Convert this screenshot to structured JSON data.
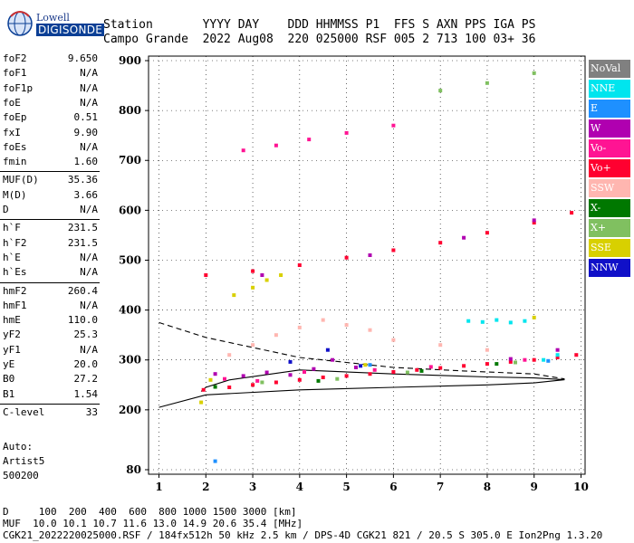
{
  "logo": {
    "line1": "Lowell",
    "line2": "DIGISONDE"
  },
  "header": {
    "labels": "Station       YYYY DAY    DDD HHMMSS P1  FFS S AXN PPS IGA PS",
    "values": "Campo Grande  2022 Aug08  220 025000 RSF 005 2 713 100 03+ 36"
  },
  "params": [
    {
      "name": "foF2",
      "value": "9.650"
    },
    {
      "name": "foF1",
      "value": "N/A"
    },
    {
      "name": "foF1p",
      "value": "N/A"
    },
    {
      "name": "foE",
      "value": "N/A"
    },
    {
      "name": "foEp",
      "value": "0.51"
    },
    {
      "name": "fxI",
      "value": "9.90"
    },
    {
      "name": "foEs",
      "value": "N/A"
    },
    {
      "name": "fmin",
      "value": "1.60"
    },
    {
      "name": "MUF(D)",
      "value": "35.36"
    },
    {
      "name": "M(D)",
      "value": "3.66"
    },
    {
      "name": "D",
      "value": "N/A"
    },
    {
      "name": "h`F",
      "value": "231.5"
    },
    {
      "name": "h`F2",
      "value": "231.5"
    },
    {
      "name": "h`E",
      "value": "N/A"
    },
    {
      "name": "h`Es",
      "value": "N/A"
    },
    {
      "name": "hmF2",
      "value": "260.4"
    },
    {
      "name": "hmF1",
      "value": "N/A"
    },
    {
      "name": "hmE",
      "value": "110.0"
    },
    {
      "name": "yF2",
      "value": "25.3"
    },
    {
      "name": "yF1",
      "value": "N/A"
    },
    {
      "name": "yE",
      "value": "20.0"
    },
    {
      "name": "B0",
      "value": "27.2"
    },
    {
      "name": "B1",
      "value": "1.54"
    },
    {
      "name": "C-level",
      "value": "33"
    }
  ],
  "extra": {
    "auto": "Auto:",
    "artist": "Artist5",
    "version": "500200"
  },
  "footer": {
    "line1": "D     100  200  400  600  800 1000 1500 3000 [km]",
    "line2": "MUF  10.0 10.1 10.7 11.6 13.0 14.9 20.6 35.4 [MHz]",
    "line3": "CGK21_2022220025000.RSF / 184fx512h 50 kHz 2.5 km / DPS-4D CGK21 821 / 20.5 S 305.0 E Ion2Png 1.3.20"
  },
  "legend": [
    {
      "label": "NoVal",
      "color": "#808080"
    },
    {
      "label": "NNE",
      "color": "#00e5ee"
    },
    {
      "label": "E",
      "color": "#1e90ff"
    },
    {
      "label": "W",
      "color": "#b000b0"
    },
    {
      "label": "Vo-",
      "color": "#ff1493"
    },
    {
      "label": "Vo+",
      "color": "#ff0030"
    },
    {
      "label": "SSW",
      "color": "#ffb6b0"
    },
    {
      "label": "X-",
      "color": "#007800"
    },
    {
      "label": "X+",
      "color": "#80c060"
    },
    {
      "label": "SSE",
      "color": "#d8d000"
    },
    {
      "label": "NNW",
      "color": "#1010c8"
    }
  ],
  "chart_data": {
    "type": "scatter",
    "title": "",
    "xlabel": "",
    "ylabel": "",
    "xlim": [
      1,
      10
    ],
    "ylim": [
      80,
      900
    ],
    "x_ticks": [
      1,
      2,
      3,
      4,
      5,
      6,
      7,
      8,
      9,
      10
    ],
    "y_ticks": [
      80,
      200,
      300,
      400,
      500,
      600,
      700,
      800,
      900
    ],
    "grid": true,
    "series": [
      {
        "name": "Vo+",
        "color": "#ff0030",
        "points": [
          [
            1.95,
            240
          ],
          [
            2.5,
            245
          ],
          [
            3.0,
            250
          ],
          [
            3.5,
            255
          ],
          [
            4.0,
            260
          ],
          [
            4.5,
            265
          ],
          [
            5.0,
            268
          ],
          [
            5.5,
            272
          ],
          [
            6.0,
            276
          ],
          [
            6.5,
            280
          ],
          [
            7.0,
            284
          ],
          [
            7.5,
            288
          ],
          [
            8.0,
            292
          ],
          [
            8.5,
            296
          ],
          [
            9.0,
            300
          ],
          [
            9.5,
            305
          ],
          [
            9.9,
            310
          ],
          [
            2.0,
            470
          ],
          [
            3.0,
            478
          ],
          [
            4.0,
            490
          ],
          [
            5.0,
            505
          ],
          [
            6.0,
            520
          ],
          [
            7.0,
            535
          ],
          [
            8.0,
            555
          ],
          [
            9.0,
            575
          ],
          [
            9.8,
            595
          ]
        ]
      },
      {
        "name": "W",
        "color": "#b000b0",
        "points": [
          [
            2.2,
            272
          ],
          [
            2.8,
            268
          ],
          [
            3.3,
            275
          ],
          [
            3.8,
            270
          ],
          [
            4.3,
            282
          ],
          [
            4.7,
            300
          ],
          [
            5.2,
            285
          ],
          [
            8.5,
            302
          ],
          [
            9.5,
            320
          ],
          [
            3.2,
            470
          ],
          [
            5.5,
            510
          ],
          [
            7.5,
            545
          ],
          [
            9.0,
            580
          ]
        ]
      },
      {
        "name": "Vo-",
        "color": "#ff1493",
        "points": [
          [
            2.4,
            262
          ],
          [
            3.1,
            258
          ],
          [
            4.1,
            276
          ],
          [
            5.6,
            280
          ],
          [
            6.8,
            286
          ],
          [
            8.8,
            300
          ],
          [
            2.8,
            720
          ],
          [
            3.5,
            730
          ],
          [
            4.2,
            742
          ],
          [
            5.0,
            755
          ],
          [
            6.0,
            770
          ]
        ]
      },
      {
        "name": "SSW",
        "color": "#ffb6b0",
        "points": [
          [
            2.5,
            310
          ],
          [
            3.0,
            330
          ],
          [
            3.5,
            350
          ],
          [
            4.0,
            365
          ],
          [
            4.5,
            380
          ],
          [
            5.0,
            370
          ],
          [
            5.5,
            360
          ],
          [
            6.0,
            340
          ],
          [
            7.0,
            330
          ],
          [
            8.0,
            320
          ]
        ]
      },
      {
        "name": "NNE",
        "color": "#00e5ee",
        "points": [
          [
            7.6,
            378
          ],
          [
            7.9,
            376
          ],
          [
            8.2,
            380
          ],
          [
            8.5,
            375
          ],
          [
            8.8,
            378
          ],
          [
            9.2,
            300
          ],
          [
            9.5,
            310
          ]
        ]
      },
      {
        "name": "SSE",
        "color": "#d8d000",
        "points": [
          [
            2.1,
            260
          ],
          [
            2.6,
            430
          ],
          [
            3.0,
            445
          ],
          [
            3.3,
            460
          ],
          [
            3.6,
            470
          ],
          [
            1.9,
            215
          ],
          [
            5.4,
            290
          ],
          [
            9.0,
            385
          ]
        ]
      },
      {
        "name": "X+",
        "color": "#80c060",
        "points": [
          [
            3.2,
            255
          ],
          [
            4.8,
            262
          ],
          [
            6.3,
            275
          ],
          [
            8.6,
            295
          ],
          [
            7.0,
            840
          ],
          [
            8.0,
            855
          ],
          [
            9.0,
            875
          ]
        ]
      },
      {
        "name": "X-",
        "color": "#007800",
        "points": [
          [
            2.2,
            246
          ],
          [
            4.4,
            258
          ],
          [
            6.6,
            278
          ],
          [
            8.2,
            292
          ]
        ]
      },
      {
        "name": "NNW",
        "color": "#1010c8",
        "points": [
          [
            3.8,
            296
          ],
          [
            4.6,
            320
          ],
          [
            5.3,
            288
          ]
        ]
      },
      {
        "name": "E",
        "color": "#1e90ff",
        "points": [
          [
            2.2,
            97
          ],
          [
            5.5,
            290
          ],
          [
            9.3,
            298
          ]
        ]
      }
    ],
    "annotations": [
      {
        "name": "profile-solid",
        "style": "solid",
        "points": [
          [
            1.0,
            205
          ],
          [
            2.0,
            230
          ],
          [
            4.0,
            240
          ],
          [
            6.0,
            245
          ],
          [
            8.0,
            250
          ],
          [
            9.0,
            254
          ],
          [
            9.65,
            260.4
          ],
          [
            9.0,
            264
          ],
          [
            8.0,
            266
          ],
          [
            6.0,
            272
          ],
          [
            4.0,
            280
          ],
          [
            2.5,
            260
          ],
          [
            2.0,
            245
          ],
          [
            1.9,
            237
          ]
        ]
      },
      {
        "name": "profile-dashed",
        "style": "dashed",
        "points": [
          [
            1.0,
            375
          ],
          [
            2.0,
            345
          ],
          [
            3.0,
            325
          ],
          [
            4.0,
            305
          ],
          [
            5.0,
            295
          ],
          [
            6.0,
            285
          ],
          [
            7.5,
            278
          ],
          [
            9.0,
            272
          ],
          [
            9.65,
            262
          ]
        ]
      }
    ]
  }
}
